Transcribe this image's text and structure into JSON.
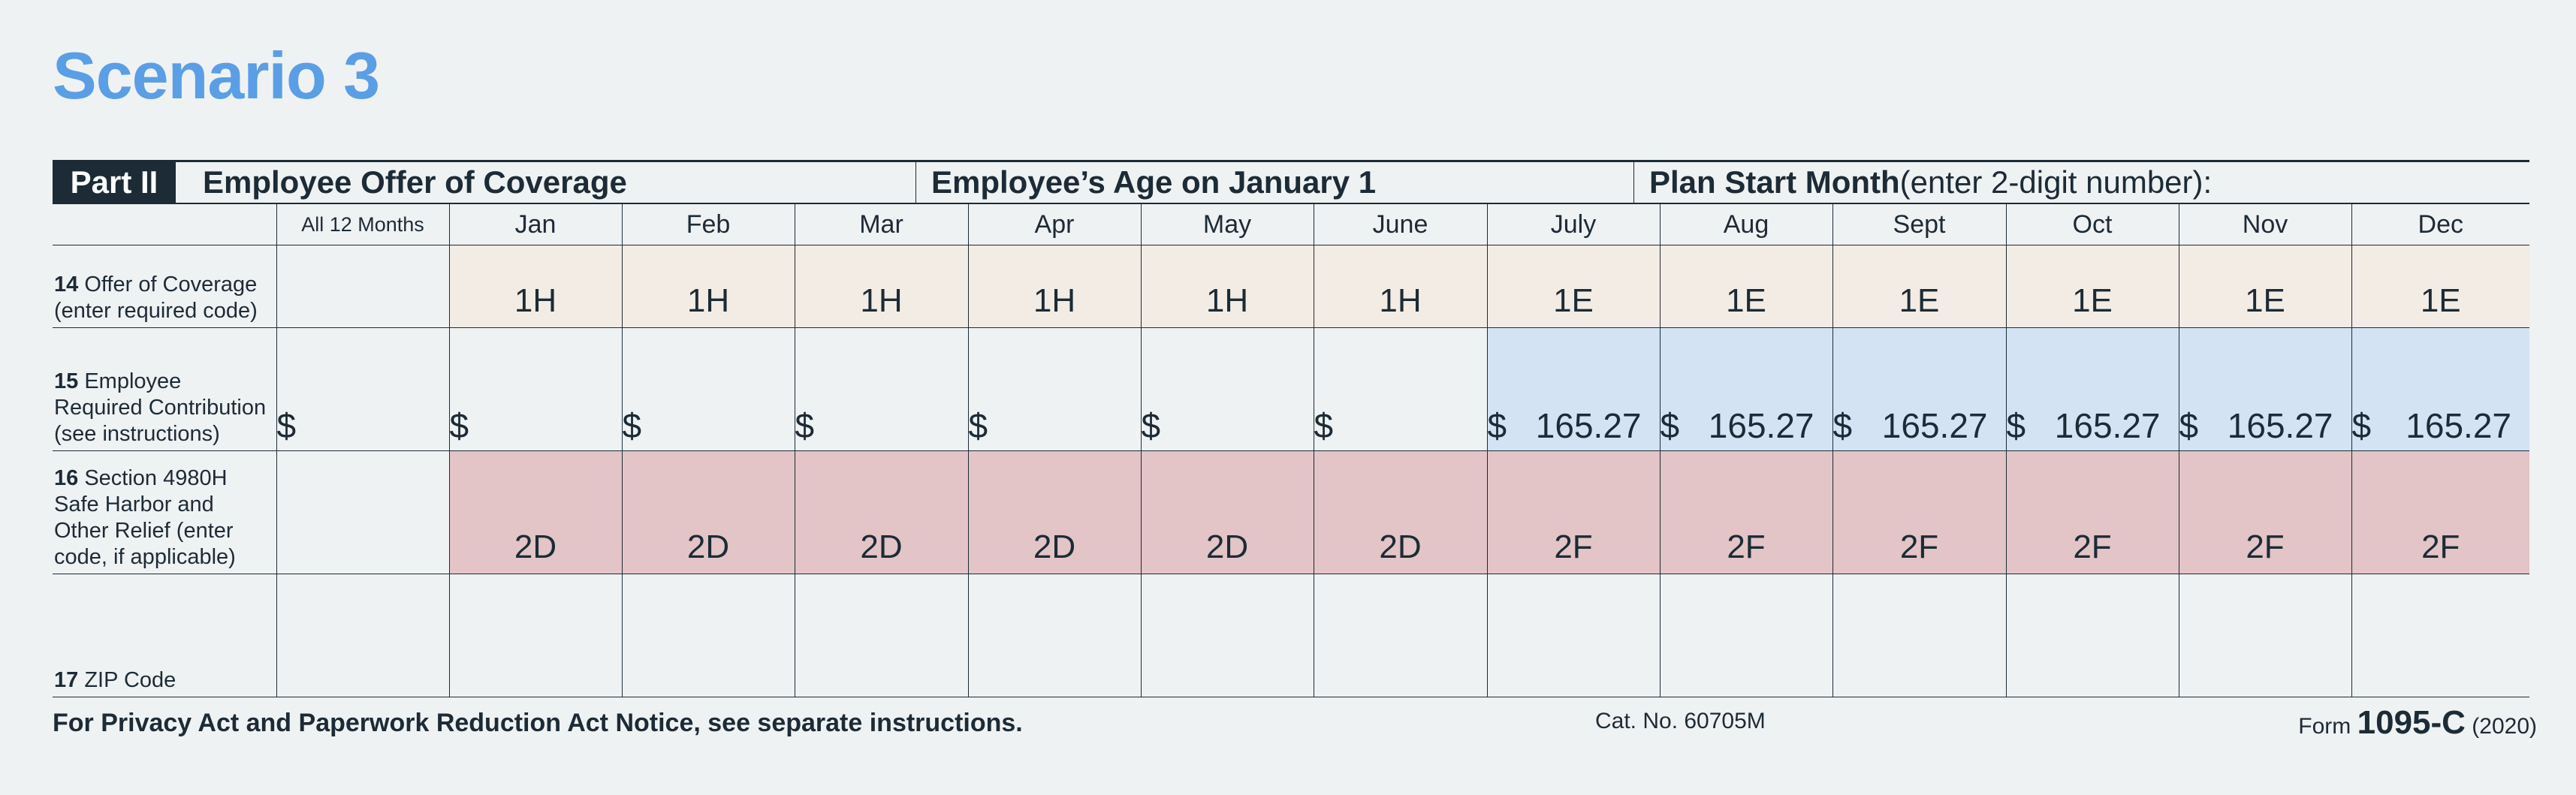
{
  "title": "Scenario 3",
  "header": {
    "part": "Part II",
    "section1": "Employee Offer of Coverage",
    "section2": "Employee’s Age on January 1",
    "section3_bold": "Plan Start Month",
    "section3_rest": " (enter 2-digit number):"
  },
  "months": [
    "All 12 Months",
    "Jan",
    "Feb",
    "Mar",
    "Apr",
    "May",
    "June",
    "July",
    "Aug",
    "Sept",
    "Oct",
    "Nov",
    "Dec"
  ],
  "rows": {
    "r14": {
      "num": "14",
      "label": " Offer of Coverage (enter required code)",
      "values": [
        "",
        "1H",
        "1H",
        "1H",
        "1H",
        "1H",
        "1H",
        "1E",
        "1E",
        "1E",
        "1E",
        "1E",
        "1E"
      ]
    },
    "r15": {
      "num": "15",
      "label": " Employee Required Contribution (see instructions)",
      "dollar": "$",
      "values": [
        "",
        "",
        "",
        "",
        "",
        "",
        "",
        "165.27",
        "165.27",
        "165.27",
        "165.27",
        "165.27",
        "165.27"
      ]
    },
    "r16": {
      "num": "16",
      "label": " Section 4980H Safe Harbor and Other Relief (enter code, if applicable)",
      "values": [
        "",
        "2D",
        "2D",
        "2D",
        "2D",
        "2D",
        "2D",
        "2F",
        "2F",
        "2F",
        "2F",
        "2F",
        "2F"
      ]
    },
    "r17": {
      "num": "17",
      "label": " ZIP Code"
    }
  },
  "footer": {
    "notice": "For Privacy Act and Paperwork Reduction Act Notice, see separate instructions.",
    "cat": "Cat. No. 60705M",
    "form_prefix": "Form ",
    "form_name": "1095-C",
    "form_year": " (2020)"
  },
  "colors": {
    "title": "#5a9ee6",
    "row14": "#f3ece4",
    "row15_highlight": "#d3e3f4",
    "row16": "#e3c4c7",
    "ink": "#1c2b36"
  }
}
